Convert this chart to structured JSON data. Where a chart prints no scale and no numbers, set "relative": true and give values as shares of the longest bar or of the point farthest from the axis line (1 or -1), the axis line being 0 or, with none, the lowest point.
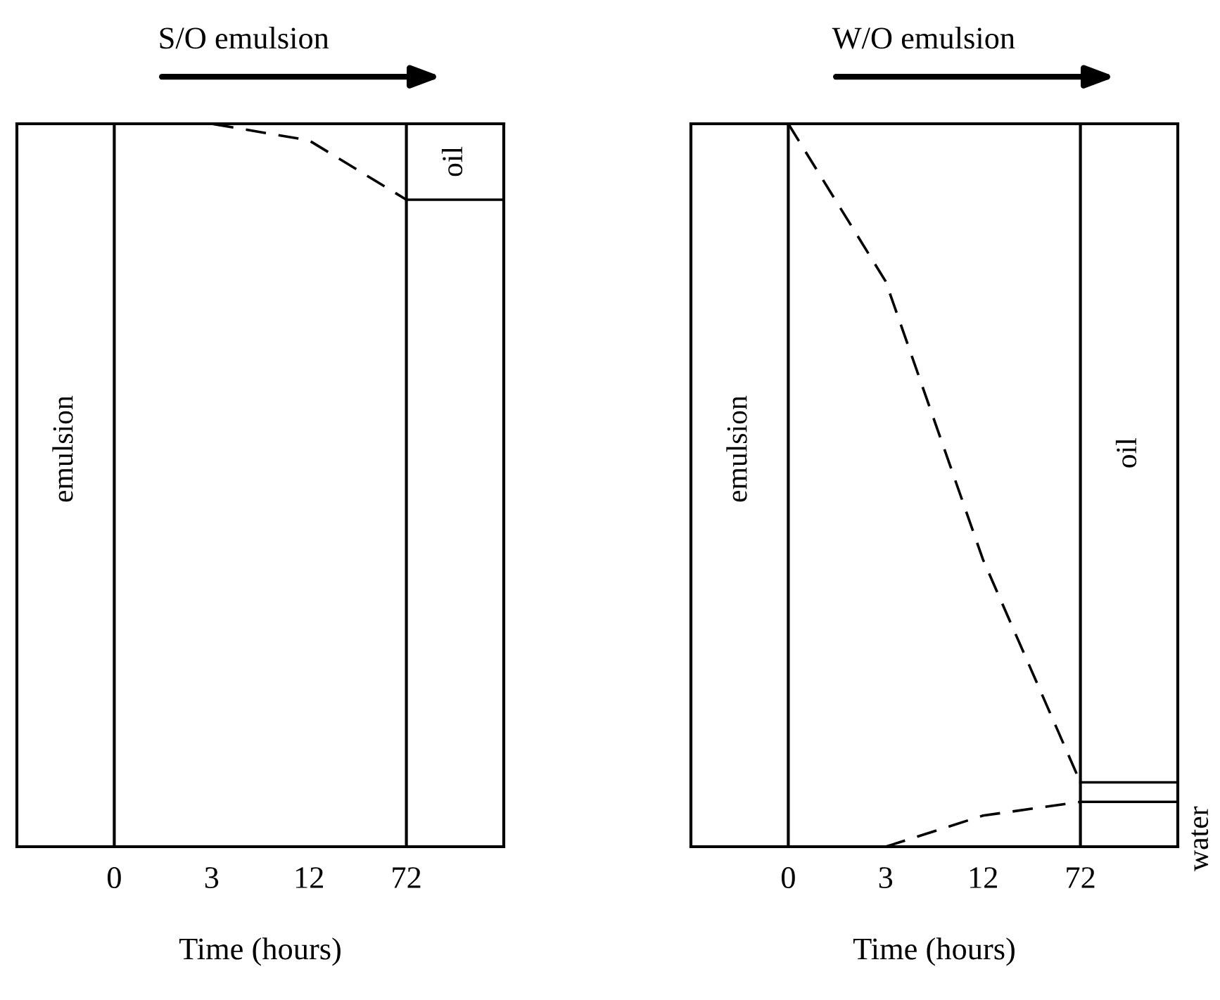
{
  "chart_data": [
    {
      "type": "line",
      "title": "S/O emulsion",
      "xlabel": "Time (hours)",
      "categories": [
        "0",
        "3",
        "12",
        "72"
      ],
      "relative": true,
      "grid": false,
      "marker": "none",
      "series": [
        {
          "color": "#000000",
          "line_style": "dashed",
          "values": [
            1,
            1,
            0.977,
            0.895
          ]
        }
      ],
      "ref_lines": [
        {
          "axis": "x",
          "value": "0",
          "color": "#000000",
          "line_style": "solid"
        },
        {
          "axis": "x",
          "value": "72",
          "color": "#000000",
          "line_style": "solid"
        },
        {
          "axis": "y",
          "value": 0.895,
          "color": "#000000",
          "line_style": "solid"
        }
      ],
      "annotations": [
        "emulsion",
        "oil"
      ]
    },
    {
      "type": "line",
      "title": "W/O emulsion",
      "xlabel": "Time (hours)",
      "categories": [
        "0",
        "3",
        "12",
        "72"
      ],
      "relative": true,
      "grid": false,
      "marker": "none",
      "series": [
        {
          "color": "#000000",
          "line_style": "dashed",
          "values": [
            1,
            0.782,
            0.397,
            0.089
          ]
        },
        {
          "color": "#000000",
          "line_style": "dashed",
          "values": [
            null,
            0,
            0.043,
            0.062
          ]
        }
      ],
      "ref_lines": [
        {
          "axis": "x",
          "value": "0",
          "color": "#000000",
          "line_style": "solid"
        },
        {
          "axis": "x",
          "value": "72",
          "color": "#000000",
          "line_style": "solid"
        },
        {
          "axis": "y",
          "value": 0.089,
          "color": "#000000",
          "line_style": "solid"
        },
        {
          "axis": "y",
          "value": 0.062,
          "color": "#000000",
          "line_style": "solid"
        }
      ],
      "annotations": [
        "emulsion",
        "oil",
        "water"
      ]
    }
  ]
}
